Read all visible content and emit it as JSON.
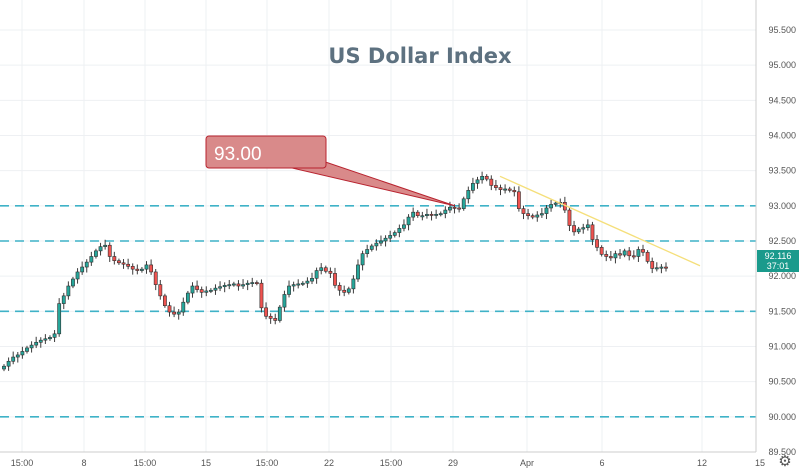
{
  "chart_data": {
    "type": "candlestick",
    "title": "US Dollar Index",
    "y_ticks": [
      "95.500",
      "95.000",
      "94.500",
      "94.000",
      "93.500",
      "93.000",
      "92.500",
      "92.000",
      "91.500",
      "91.000",
      "90.500",
      "90.000",
      "89.500"
    ],
    "ylim": [
      89.5,
      95.5
    ],
    "x_ticks": [
      "15:00",
      "8",
      "15:00",
      "15",
      "15:00",
      "22",
      "15:00",
      "29",
      "Apr",
      "6",
      "12",
      "15"
    ],
    "horizontal_levels": [
      93.0,
      92.5,
      91.5,
      90.0
    ],
    "callout": {
      "text": "93.00",
      "points_to": 93.0
    },
    "trendline": {
      "start": 93.42,
      "end": 92.12
    },
    "last_price": {
      "value": "92.116",
      "countdown": "37:01"
    },
    "closes": [
      90.72,
      90.79,
      90.85,
      90.88,
      90.93,
      90.98,
      91.02,
      91.06,
      91.09,
      91.11,
      91.13,
      91.18,
      91.61,
      91.72,
      91.86,
      91.96,
      92.06,
      92.13,
      92.2,
      92.28,
      92.36,
      92.42,
      92.44,
      92.28,
      92.22,
      92.19,
      92.17,
      92.14,
      92.1,
      92.08,
      92.1,
      92.16,
      92.06,
      91.88,
      91.72,
      91.58,
      91.49,
      91.46,
      91.49,
      91.63,
      91.76,
      91.86,
      91.81,
      91.77,
      91.79,
      91.8,
      91.83,
      91.85,
      91.87,
      91.88,
      91.89,
      91.86,
      91.88,
      91.9,
      91.91,
      91.9,
      91.55,
      91.43,
      91.4,
      91.37,
      91.56,
      91.74,
      91.86,
      91.88,
      91.89,
      91.9,
      91.93,
      91.97,
      92.08,
      92.12,
      92.07,
      92.04,
      91.87,
      91.8,
      91.77,
      91.82,
      91.96,
      92.16,
      92.32,
      92.38,
      92.43,
      92.47,
      92.5,
      92.54,
      92.58,
      92.62,
      92.68,
      92.73,
      92.84,
      92.91,
      92.86,
      92.86,
      92.88,
      92.87,
      92.88,
      92.89,
      92.94,
      92.98,
      92.97,
      92.96,
      93.1,
      93.22,
      93.32,
      93.37,
      93.42,
      93.38,
      93.29,
      93.26,
      93.23,
      93.24,
      93.22,
      93.2,
      92.96,
      92.89,
      92.86,
      92.84,
      92.87,
      92.89,
      92.97,
      93.02,
      93.04,
      93.05,
      92.94,
      92.72,
      92.63,
      92.67,
      92.69,
      92.73,
      92.52,
      92.41,
      92.31,
      92.28,
      92.26,
      92.32,
      92.3,
      92.36,
      92.29,
      92.28,
      92.38,
      92.34,
      92.21,
      92.11,
      92.12,
      92.13,
      92.12
    ]
  }
}
